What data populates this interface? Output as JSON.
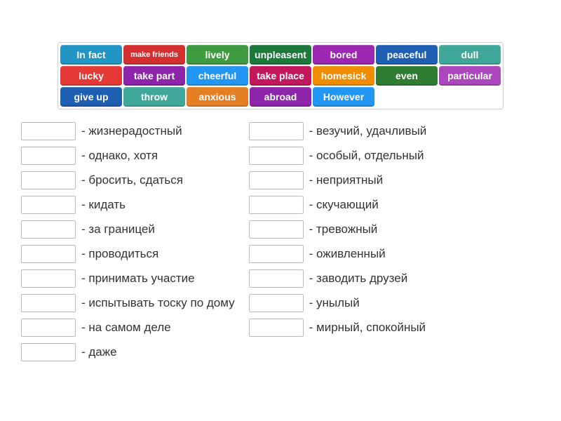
{
  "wordBank": {
    "tileWidth": 88,
    "rows": [
      [
        {
          "label": "In fact",
          "color": "#2196c4"
        },
        {
          "label": "make friends",
          "color": "#d32f2f",
          "small": true
        },
        {
          "label": "lively",
          "color": "#3f9b3f"
        },
        {
          "label": "unpleasent",
          "color": "#1b7a3a"
        },
        {
          "label": "bored",
          "color": "#9c27b0"
        },
        {
          "label": "peaceful",
          "color": "#1e5fb3"
        },
        {
          "label": "dull",
          "color": "#3fa89b"
        }
      ],
      [
        {
          "label": "lucky",
          "color": "#e53935"
        },
        {
          "label": "take part",
          "color": "#8e24aa"
        },
        {
          "label": "cheerful",
          "color": "#2196f3"
        },
        {
          "label": "take place",
          "color": "#c2185b"
        },
        {
          "label": "homesick",
          "color": "#ef8c00"
        },
        {
          "label": "even",
          "color": "#2e7d32"
        },
        {
          "label": "particular",
          "color": "#ab47bc"
        }
      ],
      [
        {
          "label": "give up",
          "color": "#1e5fb3"
        },
        {
          "label": "throw",
          "color": "#3fa89b"
        },
        {
          "label": "anxious",
          "color": "#e57f24"
        },
        {
          "label": "abroad",
          "color": "#8e24aa"
        },
        {
          "label": "However",
          "color": "#2196f3"
        }
      ]
    ]
  },
  "answers": {
    "left": [
      " - жизнерадостный",
      " - однако, хотя",
      " - бросить, сдаться",
      " - кидать",
      " - за границей",
      " - проводиться",
      " - принимать участие",
      " - испытывать тоску по дому",
      " - на самом деле",
      " - даже"
    ],
    "right": [
      " - везучий, удачливый",
      " - особый, отдельный",
      " - неприятный",
      " - скучающий",
      " - тревожный",
      " - оживленный",
      " - заводить друзей",
      " - унылый",
      " - мирный, спокойный"
    ]
  }
}
